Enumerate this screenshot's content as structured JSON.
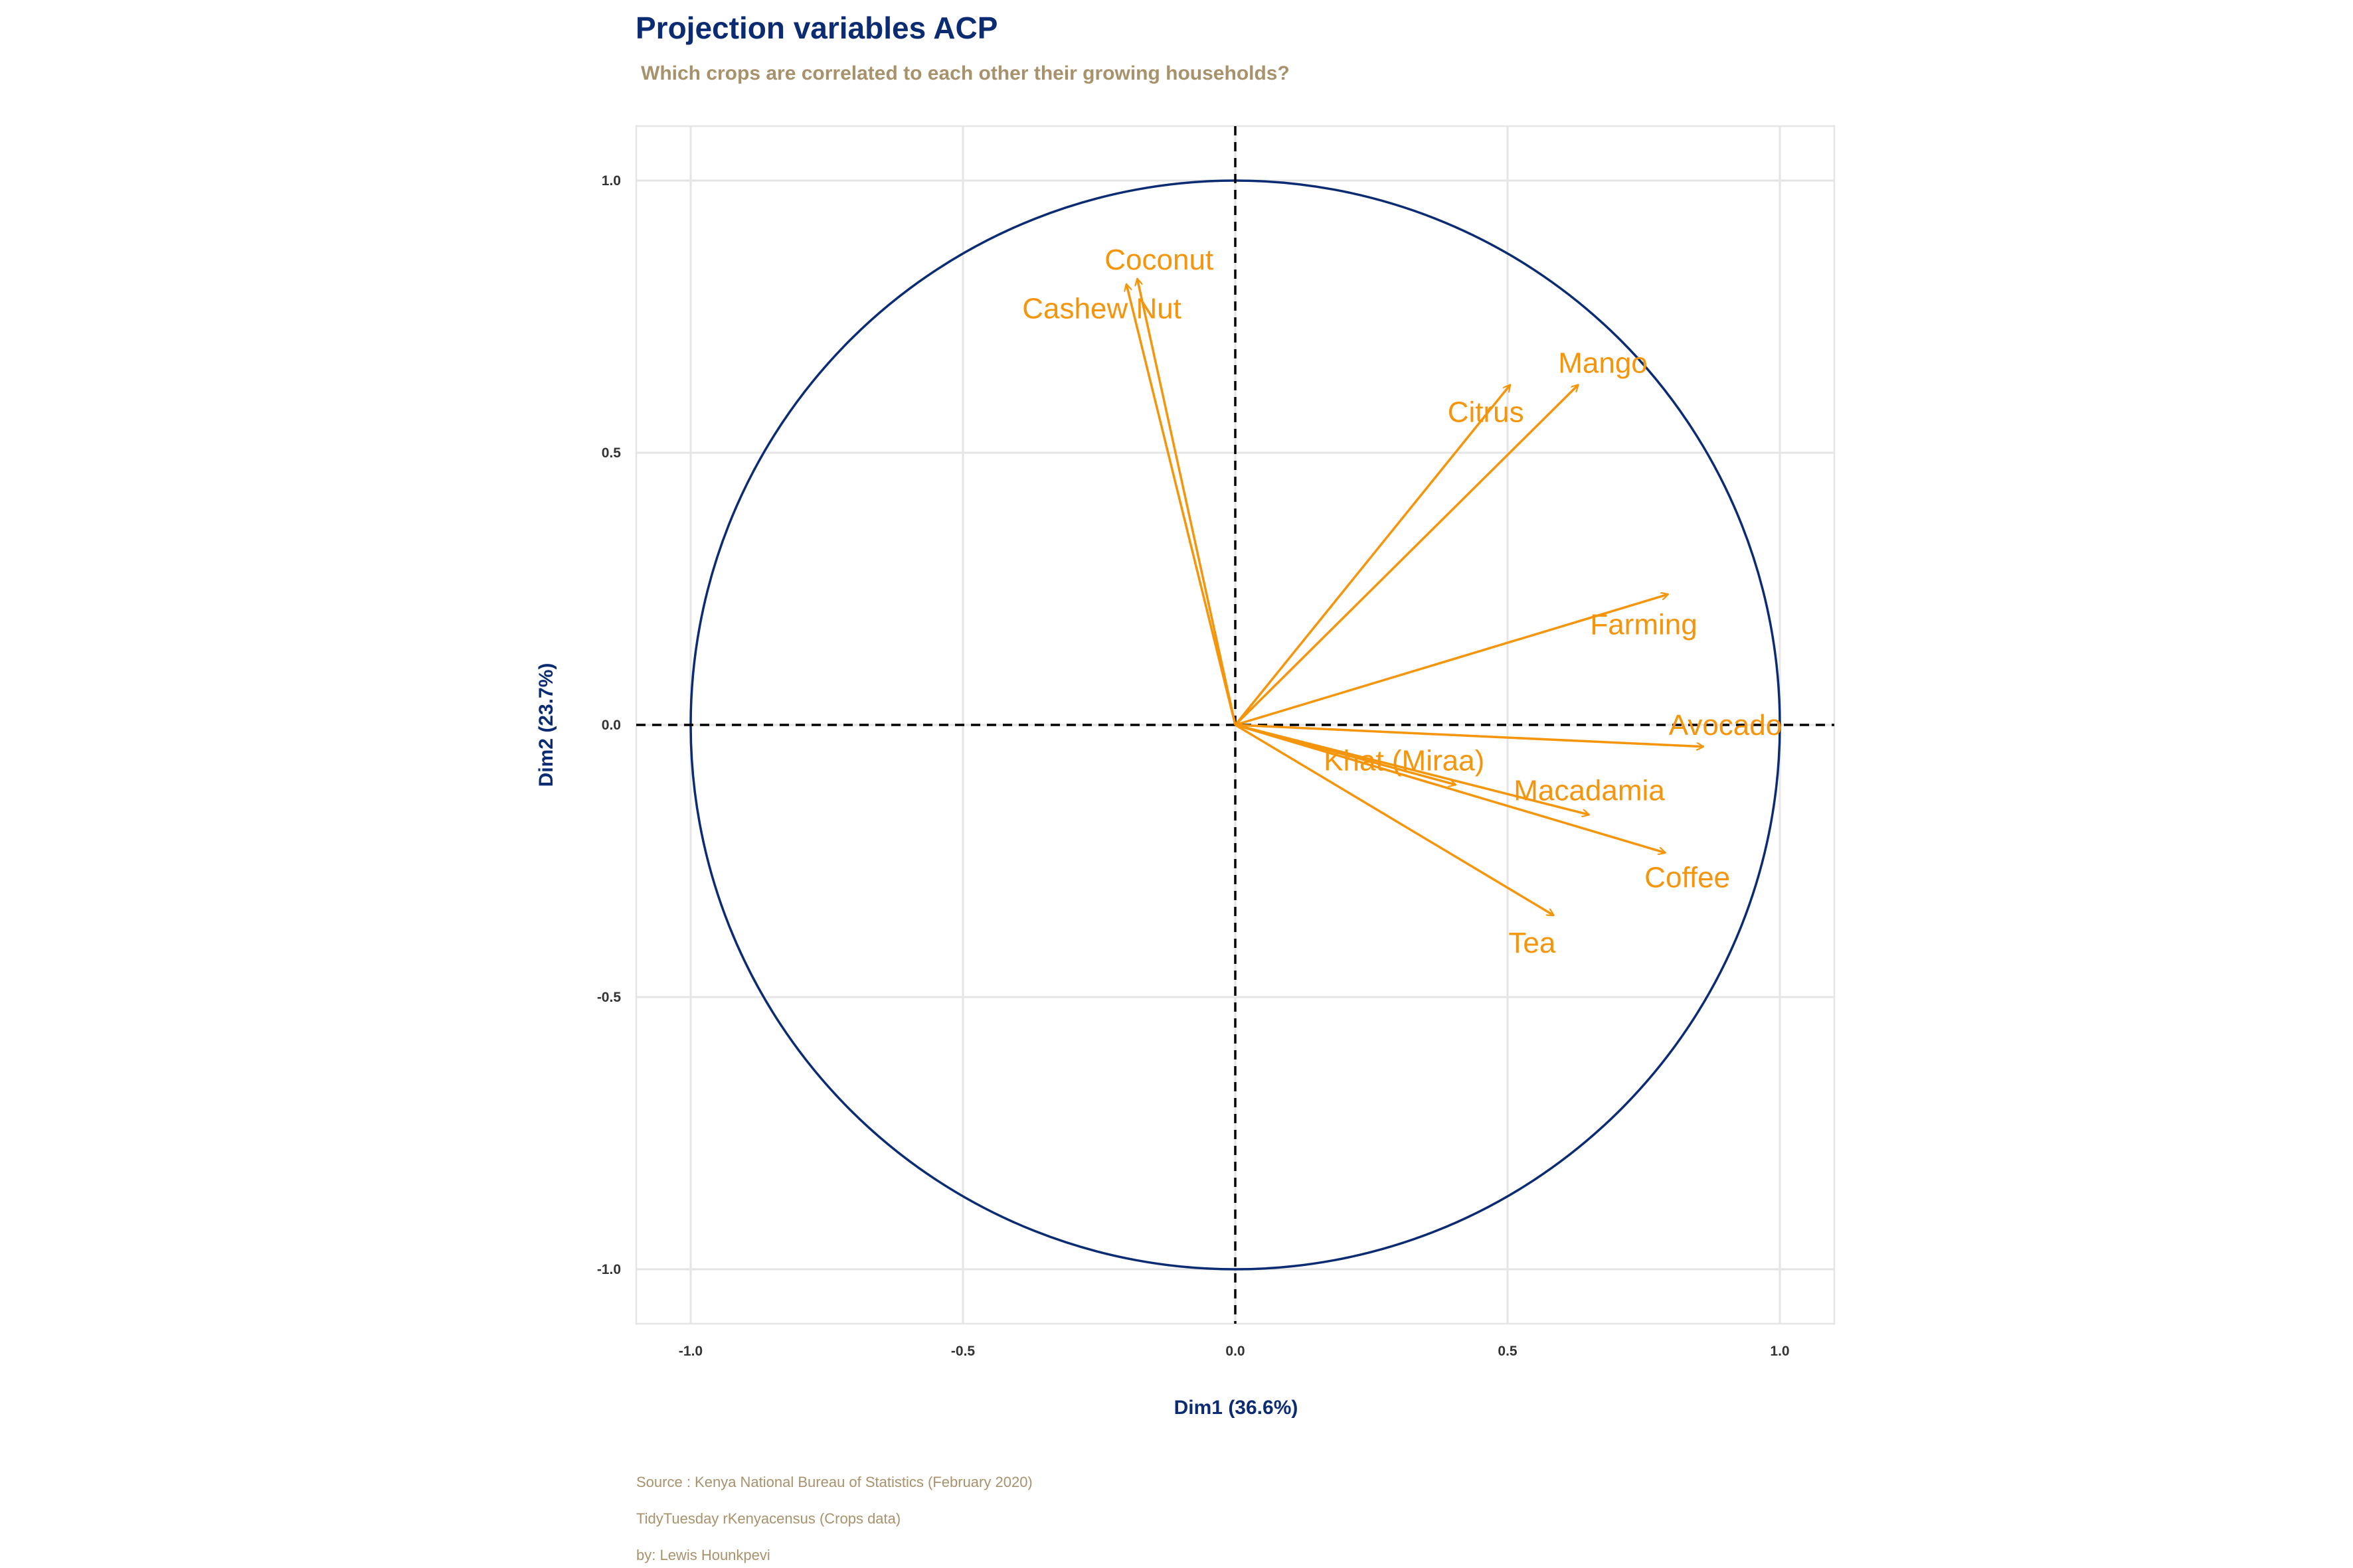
{
  "title": "Projection variables ACP",
  "subtitle": "Which crops are correlated to each other their growing households?",
  "captions": [
    "Source : Kenya National Bureau of Statistics (February 2020)",
    "TidyTuesday rKenyacensus (Crops data)",
    "by: Lewis Hounkpevi"
  ],
  "colors": {
    "title": "#0b2b73",
    "subtitle": "#a8926c",
    "arrow": "#f5950c",
    "circle": "#0b2b73",
    "grid": "#e5e5e5"
  },
  "chart_data": {
    "type": "scatter",
    "subtype": "correlation-circle",
    "xlabel": "Dim1 (36.6%)",
    "ylabel": "Dim2 (23.7%)",
    "xlim": [
      -1.1,
      1.1
    ],
    "ylim": [
      -1.1,
      1.1
    ],
    "x_ticks": [
      -1.0,
      -0.5,
      0.0,
      0.5,
      1.0
    ],
    "x_tick_labels": [
      "-1.0",
      "-0.5",
      "0.0",
      "0.5",
      "1.0"
    ],
    "y_ticks": [
      -1.0,
      -0.5,
      0.0,
      0.5,
      1.0
    ],
    "y_tick_labels": [
      "-1.0",
      "-0.5",
      "0.0",
      "0.5",
      "1.0"
    ],
    "grid": true,
    "reference_lines": {
      "x": 0,
      "y": 0,
      "style": "dashed"
    },
    "unit_circle": true,
    "variables": [
      {
        "name": "Coconut",
        "x": -0.18,
        "y": 0.82,
        "label_x": -0.14,
        "label_y": 0.855
      },
      {
        "name": "Cashew Nut",
        "x": -0.2,
        "y": 0.81,
        "label_x": -0.245,
        "label_y": 0.765
      },
      {
        "name": "Citrus",
        "x": 0.505,
        "y": 0.625,
        "label_x": 0.46,
        "label_y": 0.575
      },
      {
        "name": "Mango",
        "x": 0.63,
        "y": 0.625,
        "label_x": 0.675,
        "label_y": 0.665
      },
      {
        "name": "Farming",
        "x": 0.795,
        "y": 0.24,
        "label_x": 0.75,
        "label_y": 0.185
      },
      {
        "name": "Avocado",
        "x": 0.86,
        "y": -0.04,
        "label_x": 0.9,
        "label_y": 0.0
      },
      {
        "name": "Khat (Miraa)",
        "x": 0.405,
        "y": -0.11,
        "label_x": 0.31,
        "label_y": -0.065
      },
      {
        "name": "Macadamia",
        "x": 0.65,
        "y": -0.165,
        "label_x": 0.65,
        "label_y": -0.12
      },
      {
        "name": "Coffee",
        "x": 0.79,
        "y": -0.235,
        "label_x": 0.83,
        "label_y": -0.28
      },
      {
        "name": "Tea",
        "x": 0.585,
        "y": -0.35,
        "label_x": 0.545,
        "label_y": -0.4
      }
    ]
  }
}
